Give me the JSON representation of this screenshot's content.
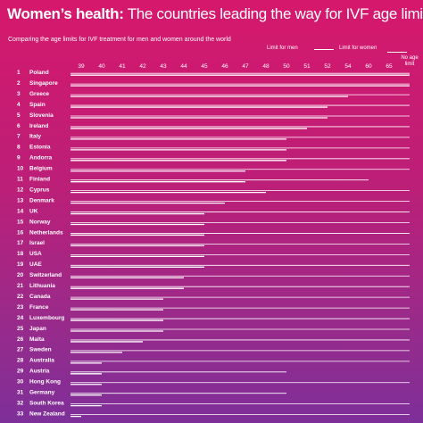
{
  "title_bold": "Women’s health:",
  "title_rest": " The countries leading the way for IVF age limits",
  "subtitle": "Comparing the age limits for IVF treatment for men and women around the world",
  "legend": {
    "men": "Limit for men",
    "women": "Limit for women"
  },
  "colors": {
    "background_top": "#d6186c",
    "background_bottom": "#7e2f99",
    "bar_line": "#ffffff"
  },
  "chart_data": {
    "type": "bar",
    "orientation": "horizontal",
    "title": "Women’s health: The countries leading the way for IVF age limits",
    "subtitle": "Comparing the age limits for IVF treatment for men and women around the world",
    "x_ticks": [
      "39",
      "40",
      "41",
      "42",
      "43",
      "44",
      "45",
      "46",
      "47",
      "48",
      "50",
      "51",
      "52",
      "54",
      "60",
      "65",
      "No age limit"
    ],
    "no_limit_label": "No age limit",
    "grid": false,
    "legend_position": "top-right",
    "series_names": [
      "Limit for men",
      "Limit for women"
    ],
    "rows": [
      {
        "rank": "1",
        "country": "Poland",
        "men": "No age limit",
        "women": "No age limit"
      },
      {
        "rank": "2",
        "country": "Singapore",
        "men": "No age limit",
        "women": "No age limit"
      },
      {
        "rank": "3",
        "country": "Greece",
        "men": "No age limit",
        "women": "54"
      },
      {
        "rank": "4",
        "country": "Spain",
        "men": "No age limit",
        "women": "52"
      },
      {
        "rank": "5",
        "country": "Slovenia",
        "men": "No age limit",
        "women": "52"
      },
      {
        "rank": "6",
        "country": "Ireland",
        "men": "No age limit",
        "women": "51"
      },
      {
        "rank": "7",
        "country": "Italy",
        "men": "No age limit",
        "women": "50"
      },
      {
        "rank": "8",
        "country": "Estonia",
        "men": "No age limit",
        "women": "50"
      },
      {
        "rank": "9",
        "country": "Andorra",
        "men": "No age limit",
        "women": "50"
      },
      {
        "rank": "10",
        "country": "Belgium",
        "men": "No age limit",
        "women": "47"
      },
      {
        "rank": "11",
        "country": "Finland",
        "men": "60",
        "women": "47"
      },
      {
        "rank": "12",
        "country": "Cyprus",
        "men": "No age limit",
        "women": "48"
      },
      {
        "rank": "13",
        "country": "Denmark",
        "men": "No age limit",
        "women": "46"
      },
      {
        "rank": "14",
        "country": "UK",
        "men": "No age limit",
        "women": "45"
      },
      {
        "rank": "15",
        "country": "Norway",
        "men": "No age limit",
        "women": "45"
      },
      {
        "rank": "16",
        "country": "Netherlands",
        "men": "No age limit",
        "women": "45"
      },
      {
        "rank": "17",
        "country": "Israel",
        "men": "No age limit",
        "women": "45"
      },
      {
        "rank": "18",
        "country": "USA",
        "men": "No age limit",
        "women": "45"
      },
      {
        "rank": "19",
        "country": "UAE",
        "men": "No age limit",
        "women": "45"
      },
      {
        "rank": "20",
        "country": "Switzerland",
        "men": "No age limit",
        "women": "44"
      },
      {
        "rank": "21",
        "country": "Lithuania",
        "men": "No age limit",
        "women": "44"
      },
      {
        "rank": "22",
        "country": "Canada",
        "men": "No age limit",
        "women": "43"
      },
      {
        "rank": "23",
        "country": "France",
        "men": "No age limit",
        "women": "43"
      },
      {
        "rank": "24",
        "country": "Luxembourg",
        "men": "No age limit",
        "women": "43"
      },
      {
        "rank": "25",
        "country": "Japan",
        "men": "No age limit",
        "women": "43"
      },
      {
        "rank": "26",
        "country": "Malta",
        "men": "No age limit",
        "women": "42"
      },
      {
        "rank": "27",
        "country": "Sweden",
        "men": "No age limit",
        "women": "41"
      },
      {
        "rank": "28",
        "country": "Australia",
        "men": "No age limit",
        "women": "40"
      },
      {
        "rank": "29",
        "country": "Austria",
        "men": "50",
        "women": "40"
      },
      {
        "rank": "30",
        "country": "Hong Kong",
        "men": "No age limit",
        "women": "40"
      },
      {
        "rank": "31",
        "country": "Germany",
        "men": "50",
        "women": "40"
      },
      {
        "rank": "32",
        "country": "South Korea",
        "men": "No age limit",
        "women": "40"
      },
      {
        "rank": "33",
        "country": "New Zealand",
        "men": "No age limit",
        "women": "39"
      }
    ]
  }
}
